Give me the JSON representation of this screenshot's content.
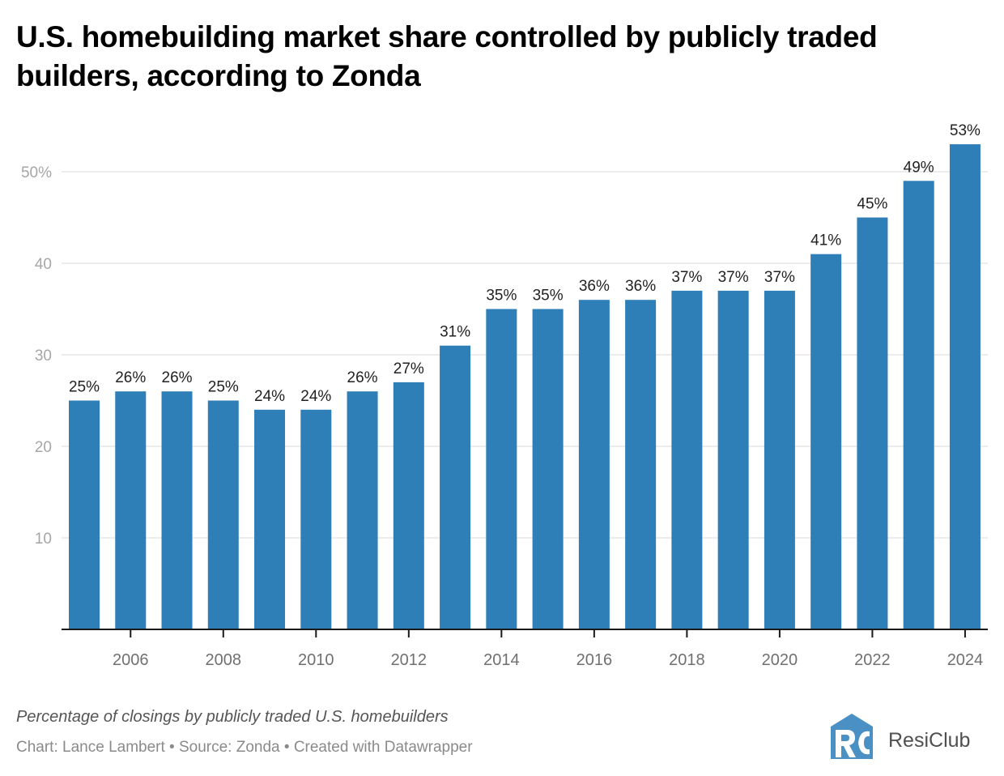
{
  "title": "U.S. homebuilding market share controlled by publicly traded builders, according to Zonda",
  "description": "Percentage of closings by publicly traded U.S. homebuilders",
  "credit": "Chart: Lance Lambert • Source: Zonda • Created with Datawrapper",
  "logo": {
    "name": "ResiClub",
    "mark": "RC",
    "color": "#4a90c4"
  },
  "colors": {
    "bar": "#2e7eb8",
    "grid": "#e6e6e6",
    "axis": "#1a1a1a"
  },
  "chart_data": {
    "type": "bar",
    "title": "U.S. homebuilding market share controlled by publicly traded builders, according to Zonda",
    "xlabel": "",
    "ylabel": "",
    "categories": [
      "2005",
      "2006",
      "2007",
      "2008",
      "2009",
      "2010",
      "2011",
      "2012",
      "2013",
      "2014",
      "2015",
      "2016",
      "2017",
      "2018",
      "2019",
      "2020",
      "2021",
      "2022",
      "2023",
      "2024"
    ],
    "values": [
      25,
      26,
      26,
      25,
      24,
      24,
      26,
      27,
      31,
      35,
      35,
      36,
      36,
      37,
      37,
      37,
      41,
      45,
      49,
      53
    ],
    "data_labels": [
      "25%",
      "26%",
      "26%",
      "25%",
      "24%",
      "24%",
      "26%",
      "27%",
      "31%",
      "35%",
      "35%",
      "36%",
      "36%",
      "37%",
      "37%",
      "37%",
      "41%",
      "45%",
      "49%",
      "53%"
    ],
    "ylim": [
      0,
      53
    ],
    "yticks": [
      10,
      20,
      30,
      40,
      50
    ],
    "ytick_labels": [
      "10",
      "20",
      "30",
      "40",
      "50%"
    ],
    "xticks": [
      "2006",
      "2008",
      "2010",
      "2012",
      "2014",
      "2016",
      "2018",
      "2020",
      "2022",
      "2024"
    ],
    "grid": true,
    "legend": "none"
  }
}
